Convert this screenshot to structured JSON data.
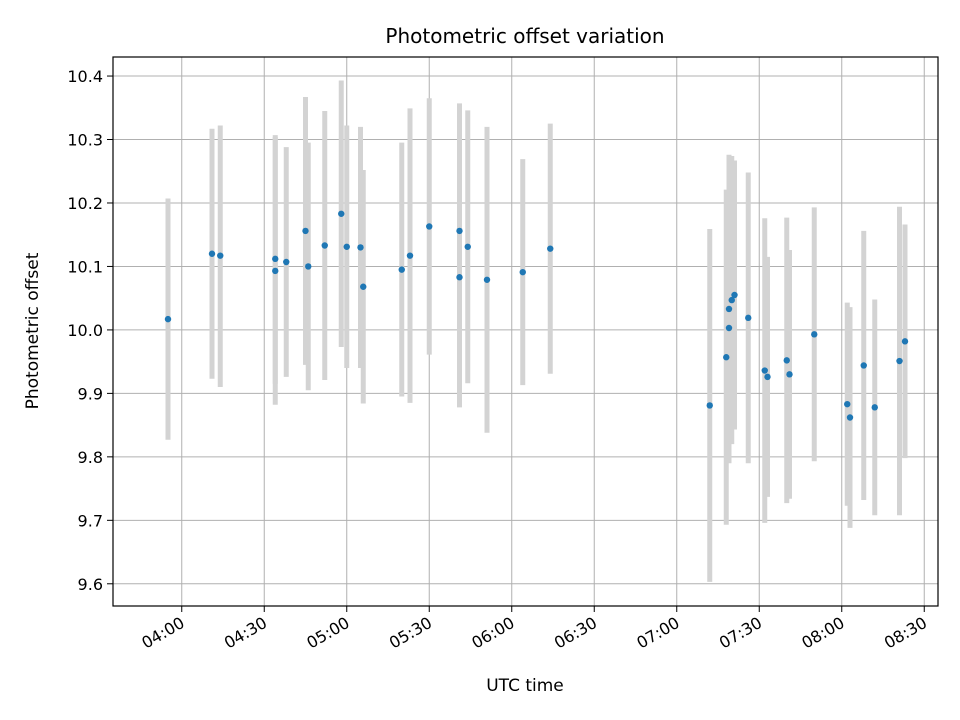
{
  "chart_data": {
    "type": "scatter",
    "title": "Photometric offset variation",
    "xlabel": "UTC time",
    "ylabel": "Photometric offset",
    "xlim": [
      "03:35",
      "08:35"
    ],
    "ylim": [
      9.565,
      10.43
    ],
    "x_ticks": [
      "04:00",
      "04:30",
      "05:00",
      "05:30",
      "06:00",
      "06:30",
      "07:00",
      "07:30",
      "08:00",
      "08:30"
    ],
    "y_ticks": [
      "9.6",
      "9.7",
      "9.8",
      "9.9",
      "10.0",
      "10.1",
      "10.2",
      "10.3",
      "10.4"
    ],
    "grid": true,
    "marker_color": "#1f77b4",
    "errorbar_color": "#d3d3d3",
    "series": [
      {
        "points": [
          {
            "t": "03:55",
            "y": 10.017,
            "lo": 9.827,
            "hi": 10.207
          },
          {
            "t": "04:11",
            "y": 10.12,
            "lo": 9.923,
            "hi": 10.317
          },
          {
            "t": "04:14",
            "y": 10.117,
            "lo": 9.91,
            "hi": 10.322
          },
          {
            "t": "04:34",
            "y": 10.112,
            "lo": 9.915,
            "hi": 10.307
          },
          {
            "t": "04:34",
            "y": 10.093,
            "lo": 9.882,
            "hi": 10.304
          },
          {
            "t": "04:38",
            "y": 10.107,
            "lo": 9.926,
            "hi": 10.288
          },
          {
            "t": "04:45",
            "y": 10.156,
            "lo": 9.945,
            "hi": 10.367
          },
          {
            "t": "04:46",
            "y": 10.1,
            "lo": 9.905,
            "hi": 10.295
          },
          {
            "t": "04:52",
            "y": 10.133,
            "lo": 9.921,
            "hi": 10.345
          },
          {
            "t": "04:58",
            "y": 10.183,
            "lo": 9.973,
            "hi": 10.393
          },
          {
            "t": "05:00",
            "y": 10.131,
            "lo": 9.94,
            "hi": 10.322
          },
          {
            "t": "05:05",
            "y": 10.13,
            "lo": 9.94,
            "hi": 10.32
          },
          {
            "t": "05:06",
            "y": 10.068,
            "lo": 9.884,
            "hi": 10.252
          },
          {
            "t": "05:20",
            "y": 10.095,
            "lo": 9.895,
            "hi": 10.295
          },
          {
            "t": "05:23",
            "y": 10.117,
            "lo": 9.885,
            "hi": 10.349
          },
          {
            "t": "05:30",
            "y": 10.163,
            "lo": 9.961,
            "hi": 10.365
          },
          {
            "t": "05:41",
            "y": 10.156,
            "lo": 9.955,
            "hi": 10.357
          },
          {
            "t": "05:41",
            "y": 10.083,
            "lo": 9.878,
            "hi": 10.288
          },
          {
            "t": "05:44",
            "y": 10.131,
            "lo": 9.916,
            "hi": 10.346
          },
          {
            "t": "05:51",
            "y": 10.079,
            "lo": 9.838,
            "hi": 10.32
          },
          {
            "t": "06:04",
            "y": 10.091,
            "lo": 9.913,
            "hi": 10.269
          },
          {
            "t": "06:14",
            "y": 10.128,
            "lo": 9.931,
            "hi": 10.325
          },
          {
            "t": "07:12",
            "y": 9.881,
            "lo": 9.603,
            "hi": 10.159
          },
          {
            "t": "07:18",
            "y": 9.957,
            "lo": 9.693,
            "hi": 10.221
          },
          {
            "t": "07:19",
            "y": 10.003,
            "lo": 9.808,
            "hi": 10.198
          },
          {
            "t": "07:19",
            "y": 10.033,
            "lo": 9.79,
            "hi": 10.276
          },
          {
            "t": "07:20",
            "y": 10.047,
            "lo": 9.82,
            "hi": 10.274
          },
          {
            "t": "07:21",
            "y": 10.055,
            "lo": 9.843,
            "hi": 10.267
          },
          {
            "t": "07:26",
            "y": 10.019,
            "lo": 9.79,
            "hi": 10.248
          },
          {
            "t": "07:32",
            "y": 9.936,
            "lo": 9.696,
            "hi": 10.176
          },
          {
            "t": "07:33",
            "y": 9.926,
            "lo": 9.737,
            "hi": 10.115
          },
          {
            "t": "07:40",
            "y": 9.952,
            "lo": 9.727,
            "hi": 10.177
          },
          {
            "t": "07:41",
            "y": 9.93,
            "lo": 9.734,
            "hi": 10.126
          },
          {
            "t": "07:50",
            "y": 9.993,
            "lo": 9.793,
            "hi": 10.193
          },
          {
            "t": "08:02",
            "y": 9.883,
            "lo": 9.723,
            "hi": 10.043
          },
          {
            "t": "08:03",
            "y": 9.862,
            "lo": 9.688,
            "hi": 10.036
          },
          {
            "t": "08:08",
            "y": 9.944,
            "lo": 9.732,
            "hi": 10.156
          },
          {
            "t": "08:12",
            "y": 9.878,
            "lo": 9.708,
            "hi": 10.048
          },
          {
            "t": "08:21",
            "y": 9.951,
            "lo": 9.708,
            "hi": 10.194
          },
          {
            "t": "08:23",
            "y": 9.982,
            "lo": 9.798,
            "hi": 10.166
          }
        ]
      }
    ]
  }
}
